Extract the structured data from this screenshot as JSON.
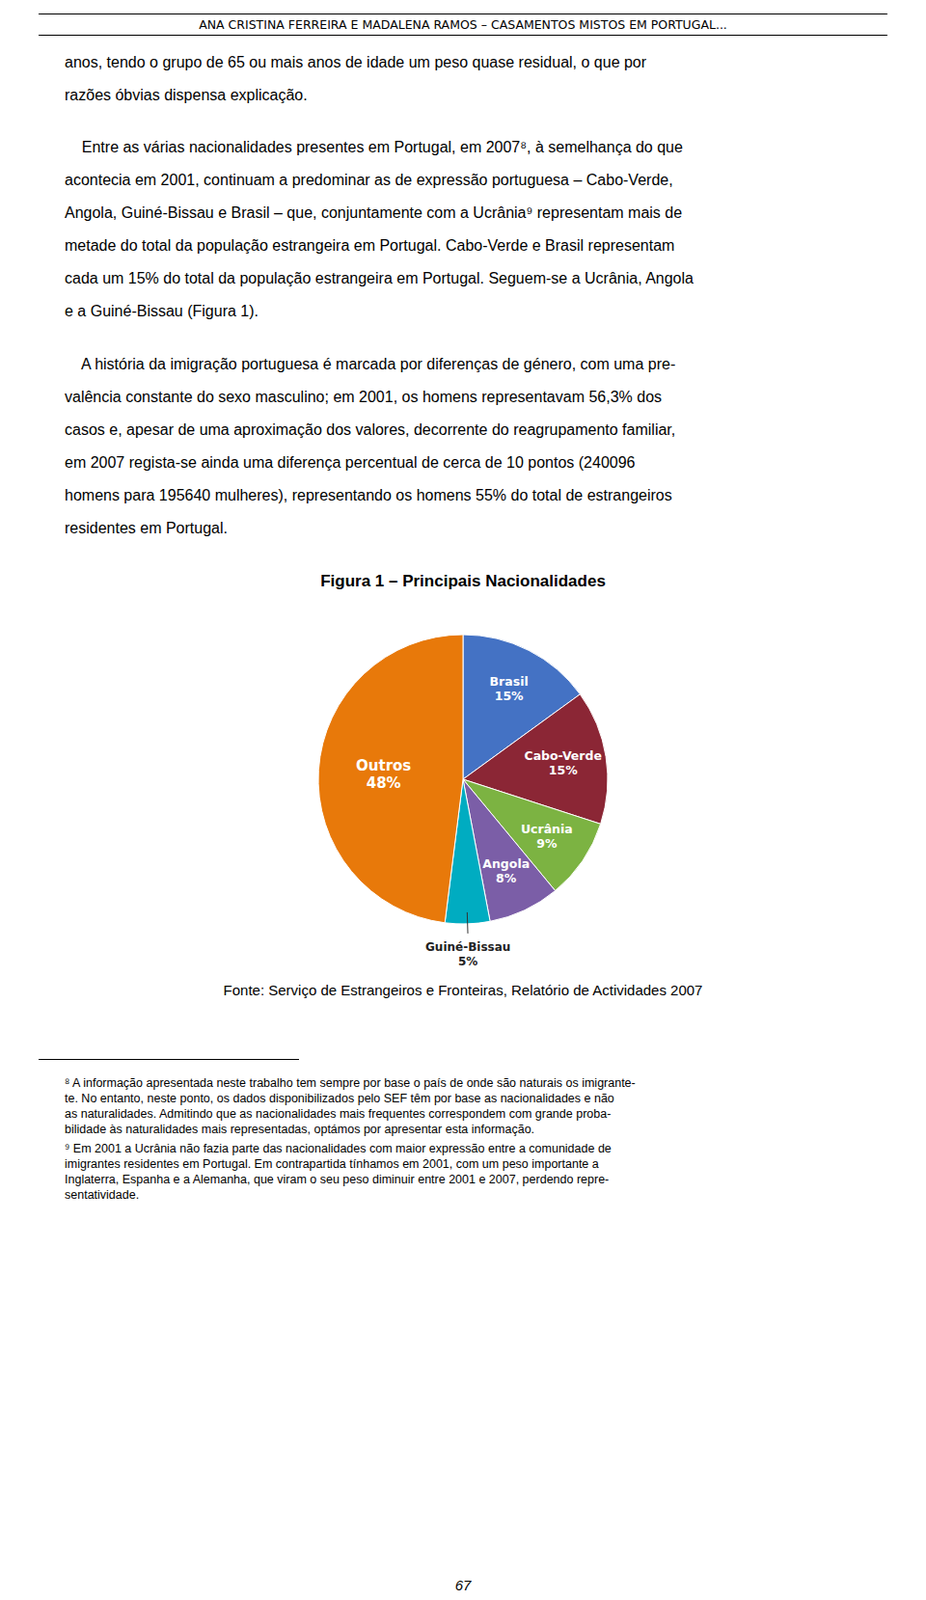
{
  "header": "ANA CRISTINA FERREIRA E MADALENA RAMOS – CASAMENTOS MISTOS EM PORTUGAL...",
  "body_paragraphs": [
    [
      "anos, tendo o grupo de 65 ou mais anos de idade um peso quase residual, o que por",
      "razões óbvias dispensa explicação."
    ],
    [
      "    Entre as várias nacionalidades presentes em Portugal, em 2007⁸, à semelhança do que",
      "acontecia em 2001, continuam a predominar as de expressão portuguesa – Cabo-Verde,",
      "Angola, Guiné-Bissau e Brasil – que, conjuntamente com a Ucrânia⁹ representam mais de",
      "metade do total da população estrangeira em Portugal. Cabo-Verde e Brasil representam",
      "cada um 15% do total da população estrangeira em Portugal. Seguem-se a Ucrânia, Angola",
      "e a Guiné-Bissau (Figura 1)."
    ],
    [
      "    A história da imigração portuguesa é marcada por diferenças de género, com uma pre-",
      "valência constante do sexo masculino; em 2001, os homens representavam 56,3% dos",
      "casos e, apesar de uma aproximação dos valores, decorrente do reagrupamento familiar,",
      "em 2007 regista-se ainda uma diferença percentual de cerca de 10 pontos (240096",
      "homens para 195640 mulheres), representando os homens 55% do total de estrangeiros",
      "residentes em Portugal."
    ]
  ],
  "chart_data": {
    "type": "pie",
    "title": "Figura 1 – Principais Nacionalidades",
    "categories": [
      "Brasil",
      "Cabo-Verde",
      "Ucrânia",
      "Angola",
      "Guiné-Bissau",
      "Outros"
    ],
    "values": [
      15,
      15,
      9,
      8,
      5,
      48
    ],
    "value_labels": [
      "15%",
      "15%",
      "9%",
      "8%",
      "5%",
      "48%"
    ],
    "colors": [
      "#4472C4",
      "#8B2635",
      "#7CB342",
      "#7B5EA7",
      "#00ACC1",
      "#E8790A"
    ],
    "data_labels": true
  },
  "source": "Fonte: Serviço de Estrangeiros e Fronteiras, Relatório de Actividades 2007",
  "footnotes": [
    [
      "⁸ A informação apresentada neste trabalho tem sempre por base o país de onde são naturais os imigrante-",
      "te. No entanto, neste ponto, os dados disponibilizados pelo SEF têm por base as nacionalidades e não",
      "as naturalidades. Admitindo que as nacionalidades mais frequentes correspondem com grande proba-",
      "bilidade às naturalidades mais representadas, optámos por apresentar esta informação."
    ],
    [
      "⁹ Em 2001 a Ucrânia não fazia parte das nacionalidades com maior expressão entre a comunidade de",
      "imigrantes residentes em Portugal. Em contrapartida tínhamos em 2001, com um peso importante a",
      "Inglaterra, Espanha e a Alemanha, que viram o seu peso diminuir entre 2001 e 2007, perdendo repre-",
      "sentatividade."
    ]
  ],
  "page_number": "67"
}
